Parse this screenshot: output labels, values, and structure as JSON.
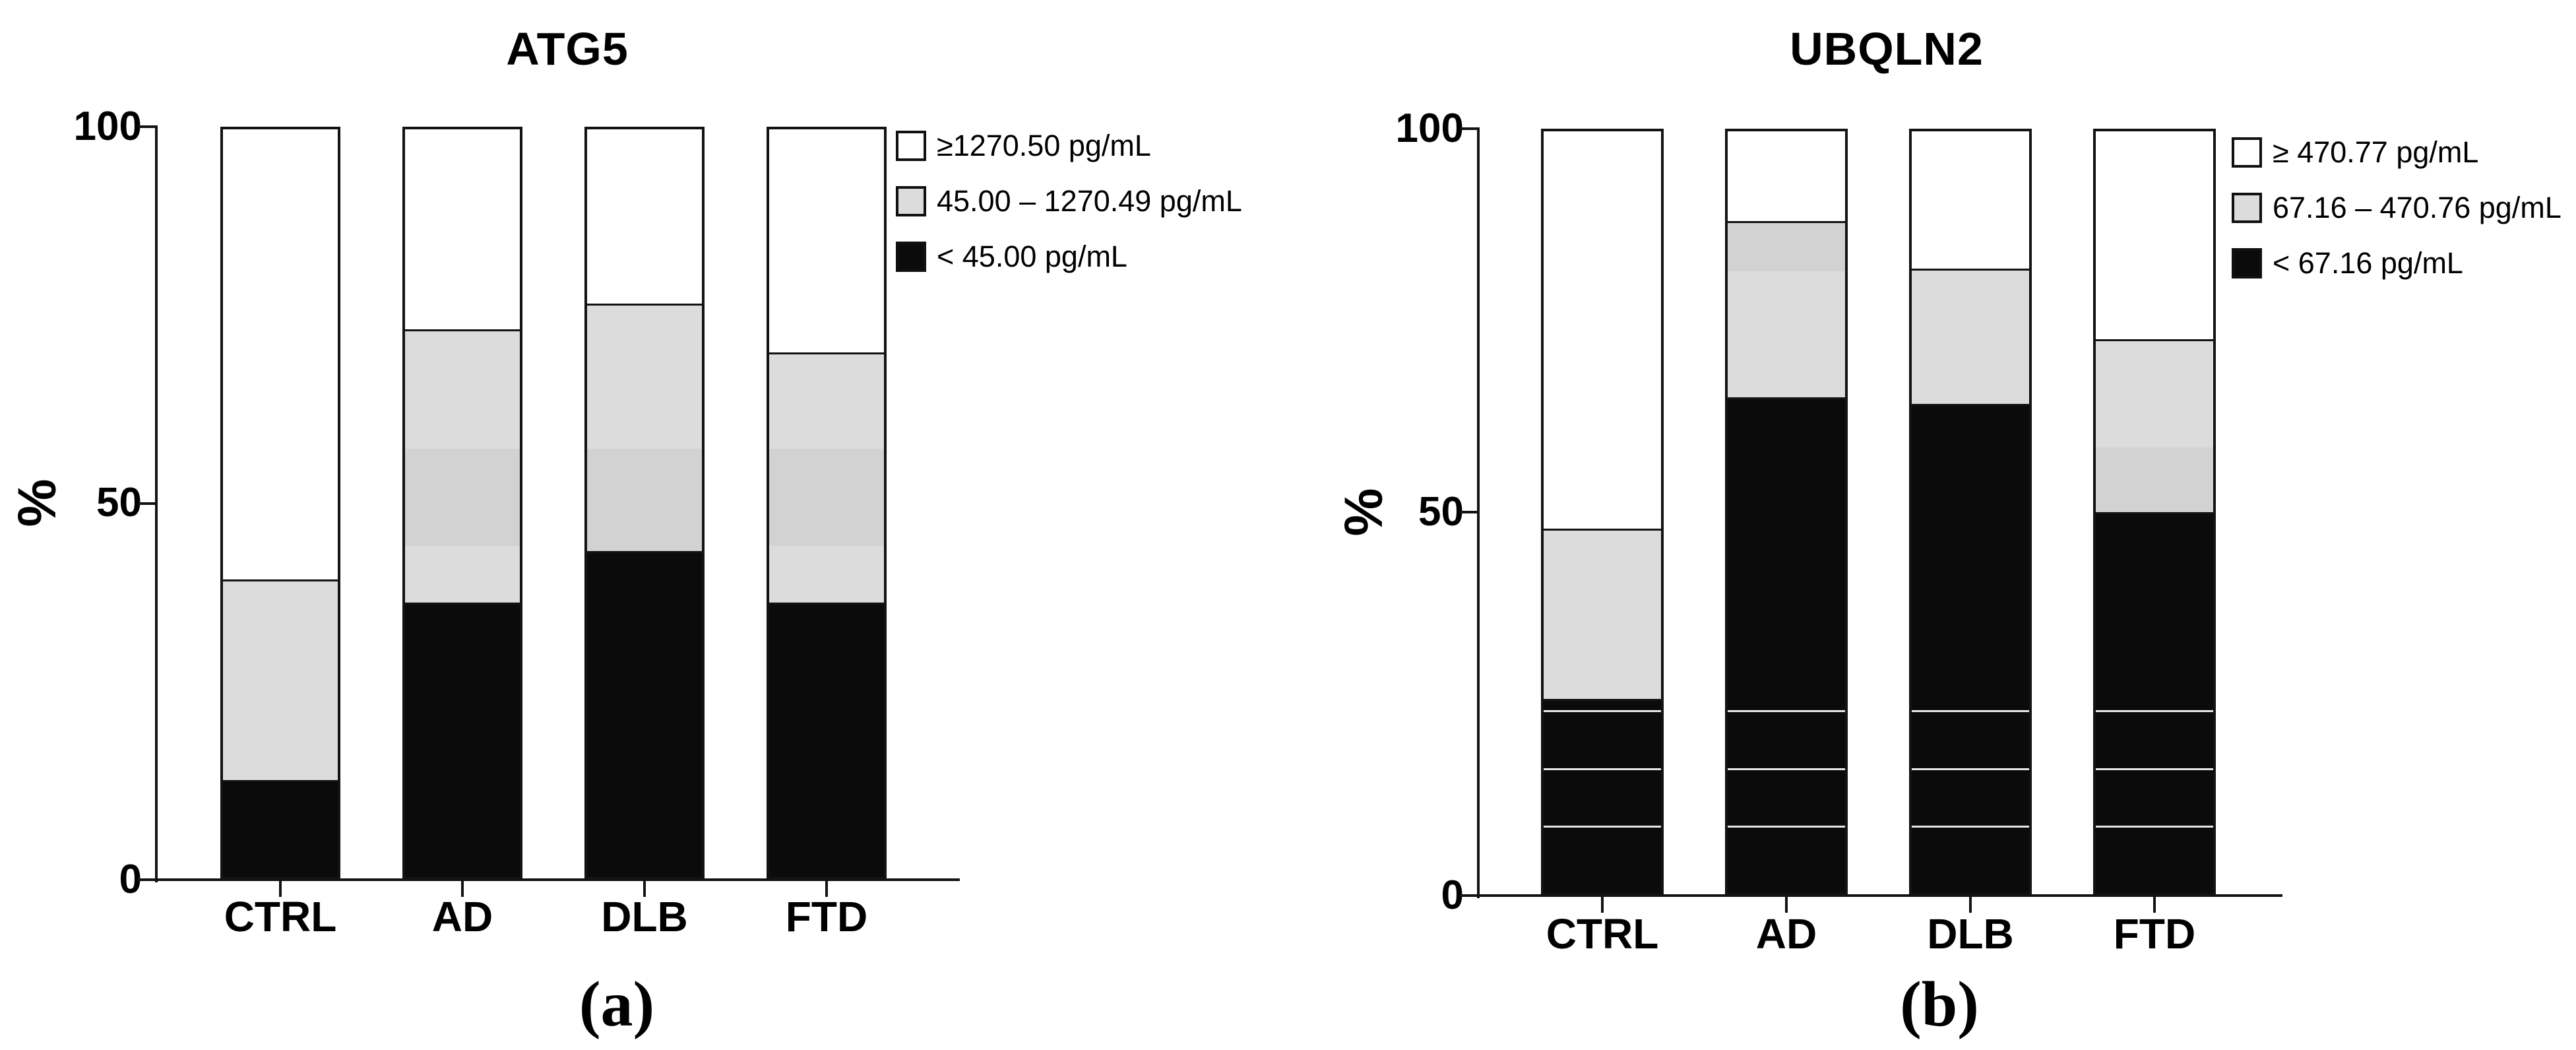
{
  "figure": {
    "colors": {
      "black": "#0b0b0b",
      "gray": "#dcdcdc",
      "gray_dark": "#d2d2d2",
      "white": "#ffffff",
      "line": "#131313"
    },
    "panels": [
      {
        "title": "ATG5",
        "caption_label": "(a)",
        "y_axis_label": "%",
        "y_ticks": [
          "0",
          "50",
          "100"
        ],
        "categories": [
          "CTRL",
          "AD",
          "DLB",
          "FTD"
        ],
        "legend": [
          {
            "label": "≥1270.50 pg/mL",
            "swatch": "white"
          },
          {
            "label": "45.00 – 1270.49 pg/mL",
            "swatch": "gray"
          },
          {
            "label": "< 45.00 pg/mL",
            "swatch": "black"
          }
        ],
        "bars": [
          {
            "category": "CTRL",
            "segments": [
              {
                "color": "black",
                "from": 0,
                "to": 13.0,
                "divider": true
              },
              {
                "color": "gray",
                "from": 13.0,
                "to": 39.8,
                "divider": true
              },
              {
                "color": "white",
                "from": 39.8,
                "to": 100
              }
            ]
          },
          {
            "category": "AD",
            "segments": [
              {
                "color": "black",
                "from": 0,
                "to": 36.7,
                "divider": true
              },
              {
                "color": "gray",
                "from": 36.7,
                "to": 44.3
              },
              {
                "color": "gray_dark",
                "from": 44.3,
                "to": 57.3
              },
              {
                "color": "gray",
                "from": 57.3,
                "to": 73.3,
                "divider": true
              },
              {
                "color": "white",
                "from": 73.3,
                "to": 100
              }
            ]
          },
          {
            "category": "DLB",
            "segments": [
              {
                "color": "black",
                "from": 0,
                "to": 43.6,
                "divider": true
              },
              {
                "color": "gray_dark",
                "from": 43.6,
                "to": 57.3
              },
              {
                "color": "gray",
                "from": 57.3,
                "to": 76.7,
                "divider": true
              },
              {
                "color": "white",
                "from": 76.7,
                "to": 100
              }
            ]
          },
          {
            "category": "FTD",
            "segments": [
              {
                "color": "black",
                "from": 0,
                "to": 36.7,
                "divider": true
              },
              {
                "color": "gray",
                "from": 36.7,
                "to": 44.3
              },
              {
                "color": "gray_dark",
                "from": 44.3,
                "to": 57.3
              },
              {
                "color": "gray",
                "from": 57.3,
                "to": 70.2,
                "divider": true
              },
              {
                "color": "white",
                "from": 70.2,
                "to": 100
              }
            ]
          }
        ],
        "overlay_white_lines": []
      },
      {
        "title": "UBQLN2",
        "caption_label": "(b)",
        "y_axis_label": "%",
        "y_ticks": [
          "0",
          "50",
          "100"
        ],
        "categories": [
          "CTRL",
          "AD",
          "DLB",
          "FTD"
        ],
        "legend": [
          {
            "label": "≥ 470.77 pg/mL",
            "swatch": "white"
          },
          {
            "label": "67.16 – 470.76 pg/mL",
            "swatch": "gray"
          },
          {
            "label": "< 67.16 pg/mL",
            "swatch": "black"
          }
        ],
        "bars": [
          {
            "category": "CTRL",
            "segments": [
              {
                "color": "black",
                "from": 0,
                "to": 25.5,
                "divider": true
              },
              {
                "color": "gray",
                "from": 25.5,
                "to": 47.8,
                "divider": true
              },
              {
                "color": "white",
                "from": 47.8,
                "to": 100
              }
            ]
          },
          {
            "category": "AD",
            "segments": [
              {
                "color": "black",
                "from": 0,
                "to": 65.1,
                "divider": true
              },
              {
                "color": "gray",
                "from": 65.1,
                "to": 81.6
              },
              {
                "color": "gray_dark",
                "from": 81.6,
                "to": 88.2,
                "divider": true
              },
              {
                "color": "white",
                "from": 88.2,
                "to": 100
              }
            ]
          },
          {
            "category": "DLB",
            "segments": [
              {
                "color": "black",
                "from": 0,
                "to": 64.2,
                "divider": true
              },
              {
                "color": "gray",
                "from": 64.2,
                "to": 82.0,
                "divider": true
              },
              {
                "color": "white",
                "from": 82.0,
                "to": 100
              }
            ]
          },
          {
            "category": "FTD",
            "segments": [
              {
                "color": "black",
                "from": 0,
                "to": 50.0,
                "divider": true
              },
              {
                "color": "gray_dark",
                "from": 50.0,
                "to": 58.5
              },
              {
                "color": "gray",
                "from": 58.5,
                "to": 72.7,
                "divider": true
              },
              {
                "color": "white",
                "from": 72.7,
                "to": 100
              }
            ]
          }
        ],
        "overlay_white_lines": [
          8.8,
          16.4,
          24.0
        ]
      }
    ]
  },
  "chart_data": [
    {
      "type": "bar",
      "stacked": true,
      "title": "ATG5",
      "xlabel": "",
      "ylabel": "%",
      "ylim": [
        0,
        100
      ],
      "y_ticks": [
        0,
        50,
        100
      ],
      "grid": false,
      "legend_position": "top-right",
      "categories": [
        "CTRL",
        "AD",
        "DLB",
        "FTD"
      ],
      "series": [
        {
          "name": "< 45.00 pg/mL",
          "color": "#0b0b0b",
          "values": [
            13.0,
            36.7,
            43.6,
            36.7
          ]
        },
        {
          "name": "45.00 – 1270.49 pg/mL",
          "color": "#dcdcdc",
          "values": [
            26.8,
            36.6,
            33.1,
            33.5
          ]
        },
        {
          "name": "≥1270.50 pg/mL",
          "color": "#ffffff",
          "values": [
            60.2,
            26.7,
            23.3,
            29.8
          ]
        }
      ]
    },
    {
      "type": "bar",
      "stacked": true,
      "title": "UBQLN2",
      "xlabel": "",
      "ylabel": "%",
      "ylim": [
        0,
        100
      ],
      "y_ticks": [
        0,
        50,
        100
      ],
      "grid": false,
      "legend_position": "top-right",
      "categories": [
        "CTRL",
        "AD",
        "DLB",
        "FTD"
      ],
      "series": [
        {
          "name": "< 67.16 pg/mL",
          "color": "#0b0b0b",
          "values": [
            25.5,
            65.1,
            64.2,
            50.0
          ]
        },
        {
          "name": "67.16 – 470.76 pg/mL",
          "color": "#dcdcdc",
          "values": [
            22.3,
            23.1,
            17.8,
            22.7
          ]
        },
        {
          "name": "≥ 470.77 pg/mL",
          "color": "#ffffff",
          "values": [
            52.2,
            11.8,
            18.0,
            27.3
          ]
        }
      ]
    }
  ]
}
